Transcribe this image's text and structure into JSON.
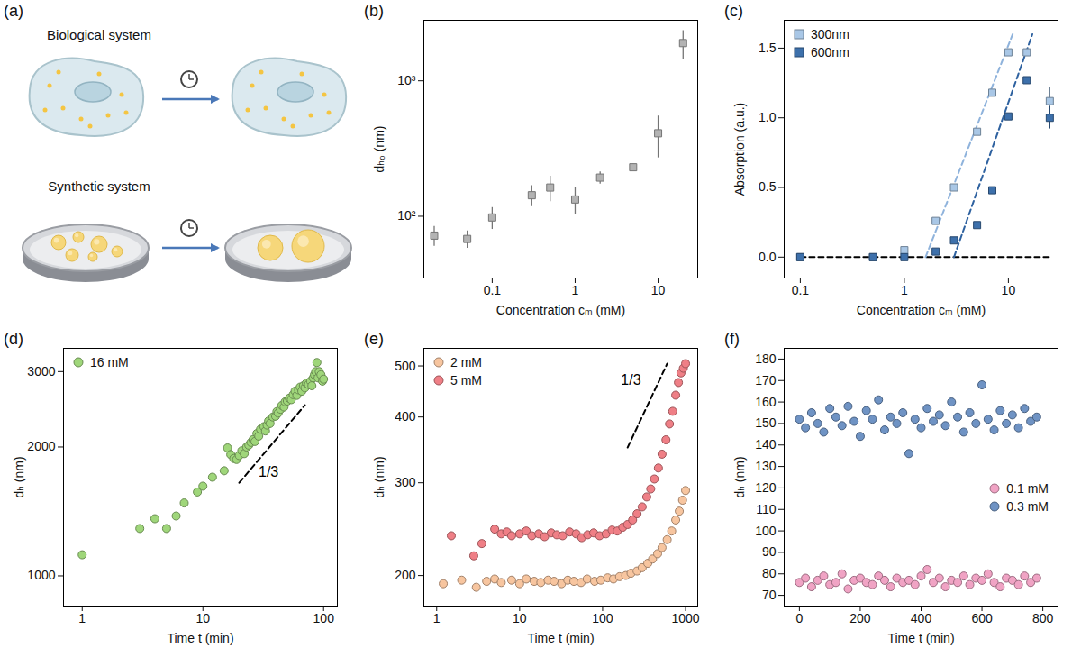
{
  "diagram": {
    "title": "(a)",
    "rows": [
      {
        "label": "Biological system"
      },
      {
        "label": "Synthetic system"
      }
    ]
  },
  "chart_data": [
    {
      "title": "(b)",
      "type": "scatter",
      "log": true,
      "x_label": "Concentration cₘ (mM)",
      "y_label": "dₕ₀ (nm)",
      "xlim": [
        0.015,
        30
      ],
      "xticks": [
        0.1,
        1,
        10
      ],
      "ylim": [
        35,
        2800
      ],
      "yticks": [
        {
          "value": 100,
          "label": "10²"
        },
        {
          "value": 1000,
          "label": "10³"
        }
      ],
      "series": [
        {
          "x": [
            0.02,
            0.05,
            0.1,
            0.3,
            0.5,
            1,
            2,
            5,
            10,
            20
          ],
          "values": [
            72,
            68,
            98,
            143,
            163,
            133,
            193,
            230,
            410,
            1900
          ],
          "errors": [
            12,
            10,
            18,
            25,
            35,
            30,
            20,
            12,
            140,
            450
          ],
          "color": "#b3b3b3",
          "marker": "square"
        }
      ]
    },
    {
      "title": "(c)",
      "type": "scatter",
      "log": "x",
      "legend": "upper left",
      "x_label": "Concentration cₘ (mM)",
      "y_label": "Absorption (a.u.)",
      "xlim": [
        0.07,
        30
      ],
      "xticks": [
        0.1,
        1,
        10
      ],
      "ylim": [
        -0.15,
        1.7
      ],
      "yticks": [
        {
          "value": 0,
          "label": "0.0"
        },
        0.5,
        {
          "value": 1,
          "label": "1.0"
        },
        1.5
      ],
      "series": [
        {
          "name": "300nm",
          "x": [
            0.1,
            0.5,
            1,
            2,
            3,
            5,
            7,
            10,
            15,
            25
          ],
          "values": [
            0,
            0,
            0.05,
            0.26,
            0.5,
            0.9,
            1.18,
            1.47,
            1.47,
            1.12
          ],
          "errors": [
            0,
            0,
            0,
            0,
            0,
            0,
            0,
            0,
            0,
            0.1
          ],
          "color": "#a9c7e6",
          "marker": "square"
        },
        {
          "name": "600nm",
          "x": [
            0.1,
            0.5,
            1,
            2,
            3,
            5,
            7,
            10,
            15,
            25
          ],
          "values": [
            0,
            0,
            0,
            0.04,
            0.12,
            0.23,
            0.48,
            1.01,
            1.27,
            1.0
          ],
          "errors": [
            0,
            0,
            0,
            0,
            0,
            0,
            0,
            0,
            0,
            0.08
          ],
          "color": "#3d70ab",
          "marker": "square"
        }
      ],
      "lines": [
        {
          "x": [
            0.1,
            25
          ],
          "y": [
            0,
            0
          ],
          "color": "#000000",
          "line_style": "dashed"
        },
        {
          "x": [
            1.6,
            11
          ],
          "y": [
            0,
            1.6
          ],
          "color": "#8fb3dc",
          "line_style": "dashed"
        },
        {
          "x": [
            3,
            17
          ],
          "y": [
            0,
            1.6
          ],
          "color": "#2f62a0",
          "line_style": "dashed"
        }
      ]
    },
    {
      "title": "(d)",
      "type": "scatter",
      "log": true,
      "legend": "upper left",
      "x_label": "Time t (min)",
      "y_label": "dₕ (nm)",
      "xlim": [
        0.7,
        130
      ],
      "xticks": [
        1,
        10,
        100
      ],
      "ylim": [
        850,
        3400
      ],
      "yticks": [
        1000,
        2000,
        3000
      ],
      "series": [
        {
          "name": "16 mM",
          "color": "#9fd67a",
          "marker": "circle",
          "x": [
            1,
            3,
            4,
            5,
            6,
            7,
            9,
            10,
            12,
            15,
            16,
            17,
            18,
            19,
            20,
            21,
            22,
            23,
            24,
            25,
            26,
            27,
            28,
            29,
            30,
            32,
            33,
            34,
            35,
            36,
            38,
            40,
            41,
            42,
            44,
            45,
            47,
            48,
            50,
            52,
            54,
            56,
            58,
            60,
            62,
            64,
            66,
            68,
            70,
            72,
            75,
            78,
            80,
            82,
            84,
            86,
            88,
            90,
            92,
            95,
            98,
            100
          ],
          "values": [
            1120,
            1290,
            1360,
            1290,
            1380,
            1480,
            1570,
            1620,
            1700,
            1760,
            1990,
            1920,
            1880,
            1870,
            1910,
            1960,
            1930,
            2000,
            2020,
            2050,
            2080,
            2060,
            2150,
            2120,
            2200,
            2230,
            2180,
            2250,
            2300,
            2270,
            2350,
            2360,
            2420,
            2400,
            2450,
            2500,
            2480,
            2550,
            2560,
            2600,
            2580,
            2650,
            2700,
            2640,
            2720,
            2760,
            2700,
            2780,
            2750,
            2820,
            2800,
            2850,
            2780,
            2900,
            2950,
            3000,
            3150,
            2900,
            3000,
            2950,
            2850,
            2880
          ]
        }
      ],
      "lines": [
        {
          "x": [
            20,
            70
          ],
          "y": [
            1650,
            2505
          ],
          "color": "#000000",
          "line_style": "dashed"
        }
      ],
      "annotations": [
        {
          "text": "1/3",
          "x": 35,
          "y": 1750
        }
      ]
    },
    {
      "title": "(e)",
      "type": "scatter",
      "log": true,
      "legend": "upper left",
      "x_label": "Time t (min)",
      "y_label": "dₕ (nm)",
      "xlim": [
        0.7,
        1400
      ],
      "xticks": [
        1,
        10,
        100,
        1000
      ],
      "ylim": [
        175,
        540
      ],
      "yticks": [
        200,
        300,
        400,
        500
      ],
      "series": [
        {
          "name": "2 mM",
          "color": "#f7c59f",
          "marker": "circle",
          "x": [
            1.2,
            2,
            3,
            4,
            5,
            6,
            8,
            10,
            12,
            15,
            18,
            22,
            26,
            32,
            38,
            45,
            55,
            65,
            80,
            95,
            115,
            135,
            160,
            190,
            220,
            260,
            300,
            350,
            400,
            460,
            520,
            600,
            680,
            760,
            840,
            920,
            1000
          ],
          "values": [
            193,
            196,
            190,
            195,
            197,
            194,
            196,
            193,
            197,
            195,
            194,
            196,
            195,
            193,
            196,
            195,
            194,
            197,
            195,
            196,
            198,
            197,
            199,
            200,
            202,
            204,
            207,
            211,
            215,
            220,
            226,
            234,
            243,
            255,
            265,
            278,
            290
          ]
        },
        {
          "name": "5 mM",
          "color": "#ef7f86",
          "marker": "circle",
          "x": [
            1.5,
            2.8,
            3.5,
            5,
            6,
            7,
            8,
            10,
            12,
            14,
            17,
            20,
            24,
            28,
            33,
            40,
            48,
            56,
            66,
            78,
            92,
            110,
            130,
            150,
            175,
            200,
            230,
            260,
            300,
            340,
            380,
            420,
            470,
            520,
            580,
            640,
            700,
            760,
            820,
            880,
            940,
            1000
          ],
          "values": [
            238,
            218,
            230,
            245,
            240,
            242,
            238,
            240,
            243,
            238,
            240,
            237,
            241,
            239,
            238,
            242,
            240,
            236,
            239,
            241,
            238,
            240,
            244,
            243,
            247,
            250,
            255,
            262,
            270,
            282,
            292,
            305,
            320,
            340,
            362,
            388,
            410,
            440,
            465,
            485,
            495,
            505
          ]
        }
      ],
      "lines": [
        {
          "x": [
            200,
            600
          ],
          "y": [
            350,
            505
          ],
          "color": "#000000",
          "line_style": "dashed"
        }
      ],
      "annotations": [
        {
          "text": "1/3",
          "x": 220,
          "y": 470
        }
      ]
    },
    {
      "title": "(f)",
      "type": "scatter",
      "legend": "lower right",
      "x_label": "Time t (min)",
      "y_label": "dₕ (nm)",
      "xlim": [
        -50,
        850
      ],
      "xticks": [
        0,
        200,
        400,
        600,
        800
      ],
      "ylim": [
        65,
        185
      ],
      "yticks": [
        70,
        80,
        90,
        100,
        110,
        120,
        130,
        140,
        150,
        160,
        170,
        180
      ],
      "series": [
        {
          "name": "0.1 mM",
          "color": "#f0a3c4",
          "marker": "circle",
          "x": [
            0,
            20,
            40,
            60,
            80,
            100,
            120,
            140,
            160,
            180,
            200,
            220,
            240,
            260,
            280,
            300,
            320,
            340,
            360,
            380,
            400,
            420,
            440,
            460,
            480,
            500,
            520,
            540,
            560,
            580,
            600,
            620,
            640,
            660,
            680,
            700,
            720,
            740,
            760,
            780
          ],
          "values": [
            76,
            78,
            74,
            77,
            79,
            75,
            76,
            80,
            73,
            77,
            78,
            76,
            75,
            79,
            77,
            74,
            78,
            76,
            77,
            75,
            79,
            82,
            76,
            78,
            74,
            77,
            76,
            79,
            75,
            78,
            77,
            80,
            76,
            74,
            78,
            77,
            75,
            79,
            76,
            78
          ]
        },
        {
          "name": "0.3 mM",
          "color": "#6f93c4",
          "marker": "circle",
          "x": [
            0,
            20,
            40,
            60,
            80,
            100,
            120,
            140,
            160,
            180,
            200,
            220,
            240,
            260,
            280,
            300,
            320,
            340,
            360,
            380,
            400,
            420,
            440,
            460,
            480,
            500,
            520,
            540,
            560,
            580,
            600,
            620,
            640,
            660,
            680,
            700,
            720,
            740,
            760,
            780
          ],
          "values": [
            152,
            148,
            155,
            150,
            146,
            157,
            153,
            149,
            158,
            151,
            144,
            156,
            152,
            161,
            147,
            153,
            150,
            155,
            136,
            152,
            148,
            157,
            151,
            154,
            149,
            160,
            153,
            146,
            155,
            150,
            168,
            152,
            147,
            156,
            150,
            154,
            148,
            157,
            151,
            153
          ]
        }
      ]
    }
  ]
}
